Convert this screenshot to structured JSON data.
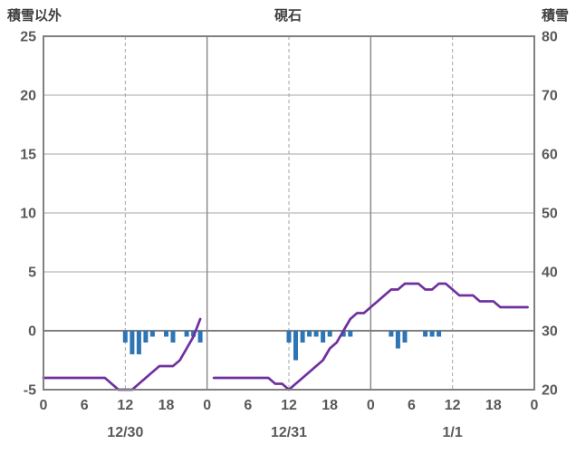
{
  "chart_data": {
    "type": "mixed",
    "title": "硯石",
    "x": {
      "total_hours": 72,
      "tick_every_hours": 6,
      "tick_labels": [
        "0",
        "6",
        "12",
        "18",
        "0",
        "6",
        "12",
        "18",
        "0",
        "6",
        "12",
        "18",
        "0"
      ],
      "day_labels": [
        {
          "label": "12/30",
          "center_hour": 12
        },
        {
          "label": "12/31",
          "center_hour": 36
        },
        {
          "label": "1/1",
          "center_hour": 60
        }
      ],
      "day_boundary_hours": [
        24,
        48
      ],
      "dashed_gridline_hours": [
        12,
        36,
        60
      ]
    },
    "left_axis": {
      "title": "積雪以外",
      "min": -5,
      "max": 25,
      "ticks": [
        25,
        20,
        15,
        10,
        5,
        0,
        -5
      ]
    },
    "right_axis": {
      "title": "積雪",
      "min": 20,
      "max": 80,
      "ticks": [
        80,
        70,
        60,
        50,
        40,
        30,
        20
      ]
    },
    "series": [
      {
        "name": "積雪以外",
        "type": "bar",
        "axis": "left",
        "color": "#2e75b6",
        "points": [
          [
            12,
            -1
          ],
          [
            13,
            -2
          ],
          [
            14,
            -2
          ],
          [
            15,
            -1
          ],
          [
            16,
            -0.5
          ],
          [
            18,
            -0.5
          ],
          [
            19,
            -1
          ],
          [
            21,
            -0.5
          ],
          [
            22,
            -0.5
          ],
          [
            23,
            -1
          ],
          [
            36,
            -1
          ],
          [
            37,
            -2.5
          ],
          [
            38,
            -1
          ],
          [
            39,
            -0.5
          ],
          [
            40,
            -0.5
          ],
          [
            41,
            -1
          ],
          [
            42,
            -0.5
          ],
          [
            44,
            -0.5
          ],
          [
            45,
            -0.5
          ],
          [
            51,
            -0.5
          ],
          [
            52,
            -1.5
          ],
          [
            53,
            -1
          ],
          [
            56,
            -0.5
          ],
          [
            57,
            -0.5
          ],
          [
            58,
            -0.5
          ]
        ]
      },
      {
        "name": "積雪",
        "type": "line",
        "axis": "right",
        "color": "#7030a0",
        "segments": [
          [
            [
              0,
              22
            ],
            [
              1,
              22
            ],
            [
              2,
              22
            ],
            [
              3,
              22
            ],
            [
              4,
              22
            ],
            [
              5,
              22
            ],
            [
              6,
              22
            ],
            [
              7,
              22
            ],
            [
              8,
              22
            ],
            [
              9,
              22
            ],
            [
              10,
              21
            ],
            [
              11,
              20
            ],
            [
              12,
              20
            ],
            [
              13,
              20
            ],
            [
              14,
              21
            ],
            [
              15,
              22
            ],
            [
              16,
              23
            ],
            [
              17,
              24
            ],
            [
              18,
              24
            ],
            [
              19,
              24
            ],
            [
              20,
              25
            ],
            [
              21,
              27
            ],
            [
              22,
              29
            ],
            [
              23,
              32
            ]
          ],
          [
            [
              25,
              22
            ],
            [
              26,
              22
            ],
            [
              27,
              22
            ],
            [
              28,
              22
            ],
            [
              29,
              22
            ],
            [
              30,
              22
            ],
            [
              31,
              22
            ],
            [
              32,
              22
            ],
            [
              33,
              22
            ],
            [
              34,
              21
            ],
            [
              35,
              21
            ],
            [
              36,
              20
            ],
            [
              37,
              21
            ],
            [
              38,
              22
            ],
            [
              39,
              23
            ],
            [
              40,
              24
            ],
            [
              41,
              25
            ],
            [
              42,
              27
            ],
            [
              43,
              28
            ],
            [
              44,
              30
            ],
            [
              45,
              32
            ],
            [
              46,
              33
            ],
            [
              47,
              33
            ],
            [
              48,
              34
            ],
            [
              49,
              35
            ],
            [
              50,
              36
            ],
            [
              51,
              37
            ],
            [
              52,
              37
            ],
            [
              53,
              38
            ],
            [
              54,
              38
            ],
            [
              55,
              38
            ],
            [
              56,
              37
            ],
            [
              57,
              37
            ],
            [
              58,
              38
            ],
            [
              59,
              38
            ],
            [
              60,
              37
            ],
            [
              61,
              36
            ],
            [
              62,
              36
            ],
            [
              63,
              36
            ],
            [
              64,
              35
            ],
            [
              65,
              35
            ],
            [
              66,
              35
            ],
            [
              67,
              34
            ],
            [
              68,
              34
            ],
            [
              69,
              34
            ],
            [
              70,
              34
            ],
            [
              71,
              34
            ]
          ]
        ]
      }
    ],
    "colors": {
      "grid": "#a6a6a6",
      "axis": "#808080",
      "text": "#595959"
    }
  }
}
